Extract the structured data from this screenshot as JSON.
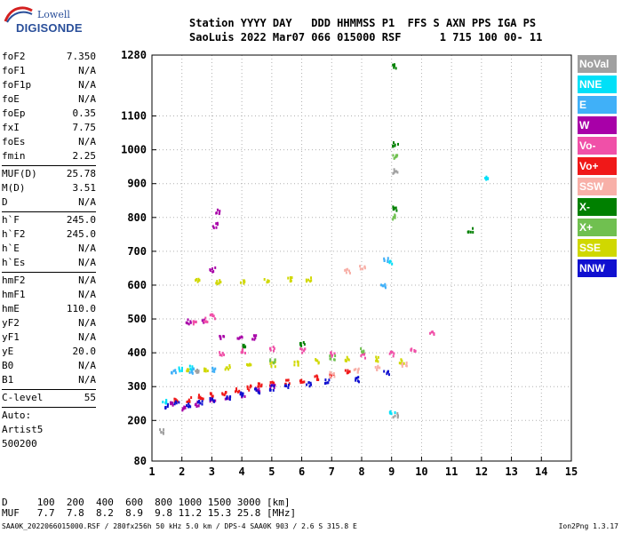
{
  "logo": {
    "line1": "Lowell",
    "line2": "DIGISONDE"
  },
  "header": {
    "line1": "Station YYYY DAY   DDD HHMMSS P1  FFS S AXN PPS IGA PS",
    "line2": "SaoLuis 2022 Mar07 066 015000 RSF      1 715 100 00- 11"
  },
  "params": [
    [
      {
        "label": "foF2",
        "value": "7.350"
      },
      {
        "label": "foF1",
        "value": "N/A"
      },
      {
        "label": "foF1p",
        "value": "N/A"
      },
      {
        "label": "foE",
        "value": "N/A"
      },
      {
        "label": "foEp",
        "value": "0.35"
      },
      {
        "label": "fxI",
        "value": "7.75"
      },
      {
        "label": "foEs",
        "value": "N/A"
      },
      {
        "label": "fmin",
        "value": "2.25"
      }
    ],
    [
      {
        "label": "MUF(D)",
        "value": "25.78"
      },
      {
        "label": "M(D)",
        "value": "3.51"
      },
      {
        "label": "D",
        "value": "N/A"
      }
    ],
    [
      {
        "label": "h`F",
        "value": "245.0"
      },
      {
        "label": "h`F2",
        "value": "245.0"
      },
      {
        "label": "h`E",
        "value": "N/A"
      },
      {
        "label": "h`Es",
        "value": "N/A"
      }
    ],
    [
      {
        "label": "hmF2",
        "value": "N/A"
      },
      {
        "label": "hmF1",
        "value": "N/A"
      },
      {
        "label": "hmE",
        "value": "110.0"
      },
      {
        "label": "yF2",
        "value": "N/A"
      },
      {
        "label": "yF1",
        "value": "N/A"
      },
      {
        "label": "yE",
        "value": "20.0"
      },
      {
        "label": "B0",
        "value": "N/A"
      },
      {
        "label": "B1",
        "value": "N/A"
      }
    ],
    [
      {
        "label": "C-level",
        "value": "55"
      }
    ]
  ],
  "auto": {
    "line1": "Auto:",
    "line2": "Artist5",
    "line3": "500200"
  },
  "legend": [
    {
      "label": "NoVal",
      "color": "#a0a0a0"
    },
    {
      "label": "NNE",
      "color": "#00e0f8"
    },
    {
      "label": "E",
      "color": "#40b0f8"
    },
    {
      "label": "W",
      "color": "#a800a8"
    },
    {
      "label": "Vo-",
      "color": "#f050a8"
    },
    {
      "label": "Vo+",
      "color": "#f01818"
    },
    {
      "label": "SSW",
      "color": "#f8b0a8"
    },
    {
      "label": "X-",
      "color": "#008000"
    },
    {
      "label": "X+",
      "color": "#70c050"
    },
    {
      "label": "SSE",
      "color": "#d0d800"
    },
    {
      "label": "NNW",
      "color": "#1010d0"
    }
  ],
  "muf": {
    "line1": "D     100  200  400  600  800 1000 1500 3000 [km]",
    "line2": "MUF   7.7  7.8  8.2  8.9  9.8 11.2 15.3 25.8 [MHz]"
  },
  "footer": {
    "text": "SAA0K_2022066015000.RSF / 280fx256h 50 kHz 5.0 km / DPS-4 SAA0K 903 / 2.6 S 315.8 E",
    "version": "Ion2Png 1.3.17"
  },
  "chart_data": {
    "type": "scatter",
    "xlabel": "",
    "ylabel": "",
    "xlim": [
      1,
      15
    ],
    "ylim": [
      80,
      1280
    ],
    "x_ticks": [
      "1",
      "2",
      "3",
      "4",
      "5",
      "6",
      "7",
      "8",
      "9",
      "10",
      "11",
      "12",
      "13",
      "14",
      "15"
    ],
    "y_ticks": [
      "80",
      "200",
      "300",
      "400",
      "500",
      "600",
      "700",
      "800",
      "900",
      "1000",
      "1100",
      "1280"
    ],
    "grid": "dotted",
    "legend_placement": "right",
    "series": [
      {
        "name": "Vo+",
        "color": "#f01818",
        "points": [
          [
            1.8,
            262
          ],
          [
            2.2,
            265
          ],
          [
            2.6,
            272
          ],
          [
            3.0,
            278
          ],
          [
            3.4,
            285
          ],
          [
            3.8,
            293
          ],
          [
            4.2,
            300
          ],
          [
            4.6,
            306
          ],
          [
            5.0,
            312
          ],
          [
            5.5,
            318
          ],
          [
            6.0,
            323
          ],
          [
            6.5,
            330
          ],
          [
            7.0,
            338
          ],
          [
            7.5,
            346
          ]
        ]
      },
      {
        "name": "W",
        "color": "#a800a8",
        "points": [
          [
            1.6,
            250
          ],
          [
            2.0,
            240
          ],
          [
            2.5,
            252
          ],
          [
            3.0,
            262
          ],
          [
            3.5,
            272
          ],
          [
            4.0,
            280
          ],
          [
            4.5,
            296
          ],
          [
            5.0,
            302
          ],
          [
            3.3,
            450
          ],
          [
            3.9,
            448
          ],
          [
            4.4,
            449
          ],
          [
            2.2,
            495
          ],
          [
            2.7,
            499
          ],
          [
            3.0,
            650
          ],
          [
            3.1,
            780
          ],
          [
            3.2,
            820
          ]
        ]
      },
      {
        "name": "NNW",
        "color": "#1010d0",
        "points": [
          [
            1.5,
            245
          ],
          [
            1.8,
            255
          ],
          [
            2.2,
            248
          ],
          [
            2.6,
            258
          ],
          [
            3.0,
            265
          ],
          [
            3.5,
            270
          ],
          [
            4.0,
            282
          ],
          [
            4.5,
            290
          ],
          [
            5.0,
            300
          ],
          [
            5.5,
            306
          ],
          [
            6.2,
            312
          ],
          [
            6.8,
            318
          ],
          [
            7.8,
            325
          ],
          [
            8.8,
            345
          ]
        ]
      },
      {
        "name": "SSE",
        "color": "#d0d800",
        "points": [
          [
            2.2,
            355
          ],
          [
            2.8,
            355
          ],
          [
            3.5,
            360
          ],
          [
            4.2,
            365
          ],
          [
            5.0,
            370
          ],
          [
            5.8,
            372
          ],
          [
            6.5,
            380
          ],
          [
            7.5,
            385
          ],
          [
            8.5,
            385
          ],
          [
            9.3,
            378
          ],
          [
            2.5,
            615
          ],
          [
            3.2,
            612
          ],
          [
            4.0,
            614
          ],
          [
            4.8,
            617
          ],
          [
            5.6,
            620
          ],
          [
            6.2,
            622
          ]
        ]
      },
      {
        "name": "Vo-",
        "color": "#f050a8",
        "points": [
          [
            2.4,
            495
          ],
          [
            2.8,
            500
          ],
          [
            3.0,
            510
          ],
          [
            3.3,
            400
          ],
          [
            4.0,
            410
          ],
          [
            5.0,
            415
          ],
          [
            6.0,
            410
          ],
          [
            7.0,
            400
          ],
          [
            8.0,
            395
          ],
          [
            9.0,
            400
          ],
          [
            9.7,
            415
          ],
          [
            10.3,
            460
          ]
        ]
      },
      {
        "name": "SSW",
        "color": "#f8b0a8",
        "points": [
          [
            7.0,
            340
          ],
          [
            7.8,
            350
          ],
          [
            8.5,
            360
          ],
          [
            9.4,
            370
          ],
          [
            7.5,
            645
          ],
          [
            8.0,
            655
          ]
        ]
      },
      {
        "name": "NNE",
        "color": "#00e0f8",
        "points": [
          [
            1.4,
            260
          ],
          [
            1.9,
            355
          ],
          [
            2.3,
            360
          ],
          [
            9.0,
            230
          ],
          [
            8.9,
            670
          ],
          [
            12.1,
            920
          ]
        ]
      },
      {
        "name": "E",
        "color": "#40b0f8",
        "points": [
          [
            1.7,
            350
          ],
          [
            2.3,
            350
          ],
          [
            3.0,
            355
          ],
          [
            8.7,
            600
          ],
          [
            8.8,
            680
          ]
        ]
      },
      {
        "name": "X-",
        "color": "#008000",
        "points": [
          [
            4.0,
            420
          ],
          [
            6.0,
            430
          ],
          [
            9.1,
            1250
          ],
          [
            9.1,
            1020
          ],
          [
            9.1,
            830
          ],
          [
            11.6,
            765
          ]
        ]
      },
      {
        "name": "X+",
        "color": "#70c050",
        "points": [
          [
            5.0,
            380
          ],
          [
            7.0,
            390
          ],
          [
            8.0,
            410
          ],
          [
            9.1,
            985
          ],
          [
            9.1,
            805
          ]
        ]
      },
      {
        "name": "NoVal",
        "color": "#a0a0a0",
        "points": [
          [
            9.1,
            220
          ],
          [
            9.1,
            940
          ],
          [
            2.5,
            350
          ],
          [
            1.3,
            170
          ]
        ]
      }
    ]
  }
}
